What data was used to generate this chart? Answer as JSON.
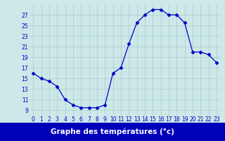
{
  "hours": [
    0,
    1,
    2,
    3,
    4,
    5,
    6,
    7,
    8,
    9,
    10,
    11,
    12,
    13,
    14,
    15,
    16,
    17,
    18,
    19,
    20,
    21,
    22,
    23
  ],
  "temperatures": [
    16,
    15,
    14.5,
    13.5,
    11,
    10,
    9.5,
    9.5,
    9.5,
    10,
    16,
    17,
    21.5,
    25.5,
    27,
    28,
    28,
    27,
    27,
    25.5,
    20,
    20,
    19.5,
    18
  ],
  "line_color": "#0000cc",
  "marker": "D",
  "marker_size": 2.5,
  "bg_color": "#cce8e8",
  "grid_color": "#aacccc",
  "xlabel": "Graphe des températures (°c)",
  "xlabel_bg": "#0000bb",
  "xlabel_color": "#ffffff",
  "ylim": [
    8,
    29
  ],
  "yticks": [
    9,
    11,
    13,
    15,
    17,
    19,
    21,
    23,
    25,
    27
  ],
  "xticks": [
    0,
    1,
    2,
    3,
    4,
    5,
    6,
    7,
    8,
    9,
    10,
    11,
    12,
    13,
    14,
    15,
    16,
    17,
    18,
    19,
    20,
    21,
    22,
    23
  ],
  "tick_fontsize": 5.5,
  "xlabel_fontsize": 7.5,
  "fig_width": 3.2,
  "fig_height": 2.0,
  "dpi": 100
}
